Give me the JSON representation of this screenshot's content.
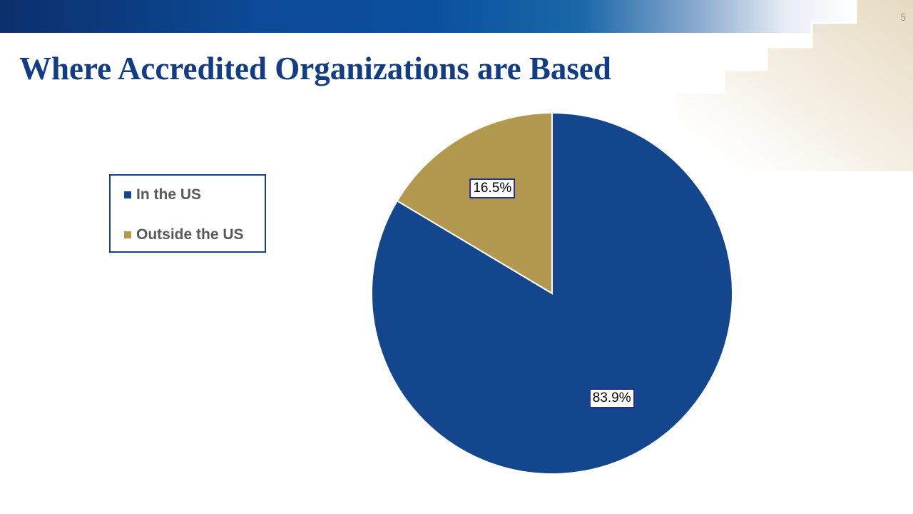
{
  "slide": {
    "number": "5",
    "title": "Where Accredited Organizations are Based"
  },
  "chart_data": {
    "type": "pie",
    "title": "",
    "categories": [
      "In the US",
      "Outside the US"
    ],
    "values": [
      83.9,
      16.5
    ],
    "data_labels": [
      "83.9%",
      "16.5%"
    ],
    "colors": [
      "#13468c",
      "#b39850"
    ],
    "legend_position": "left"
  }
}
